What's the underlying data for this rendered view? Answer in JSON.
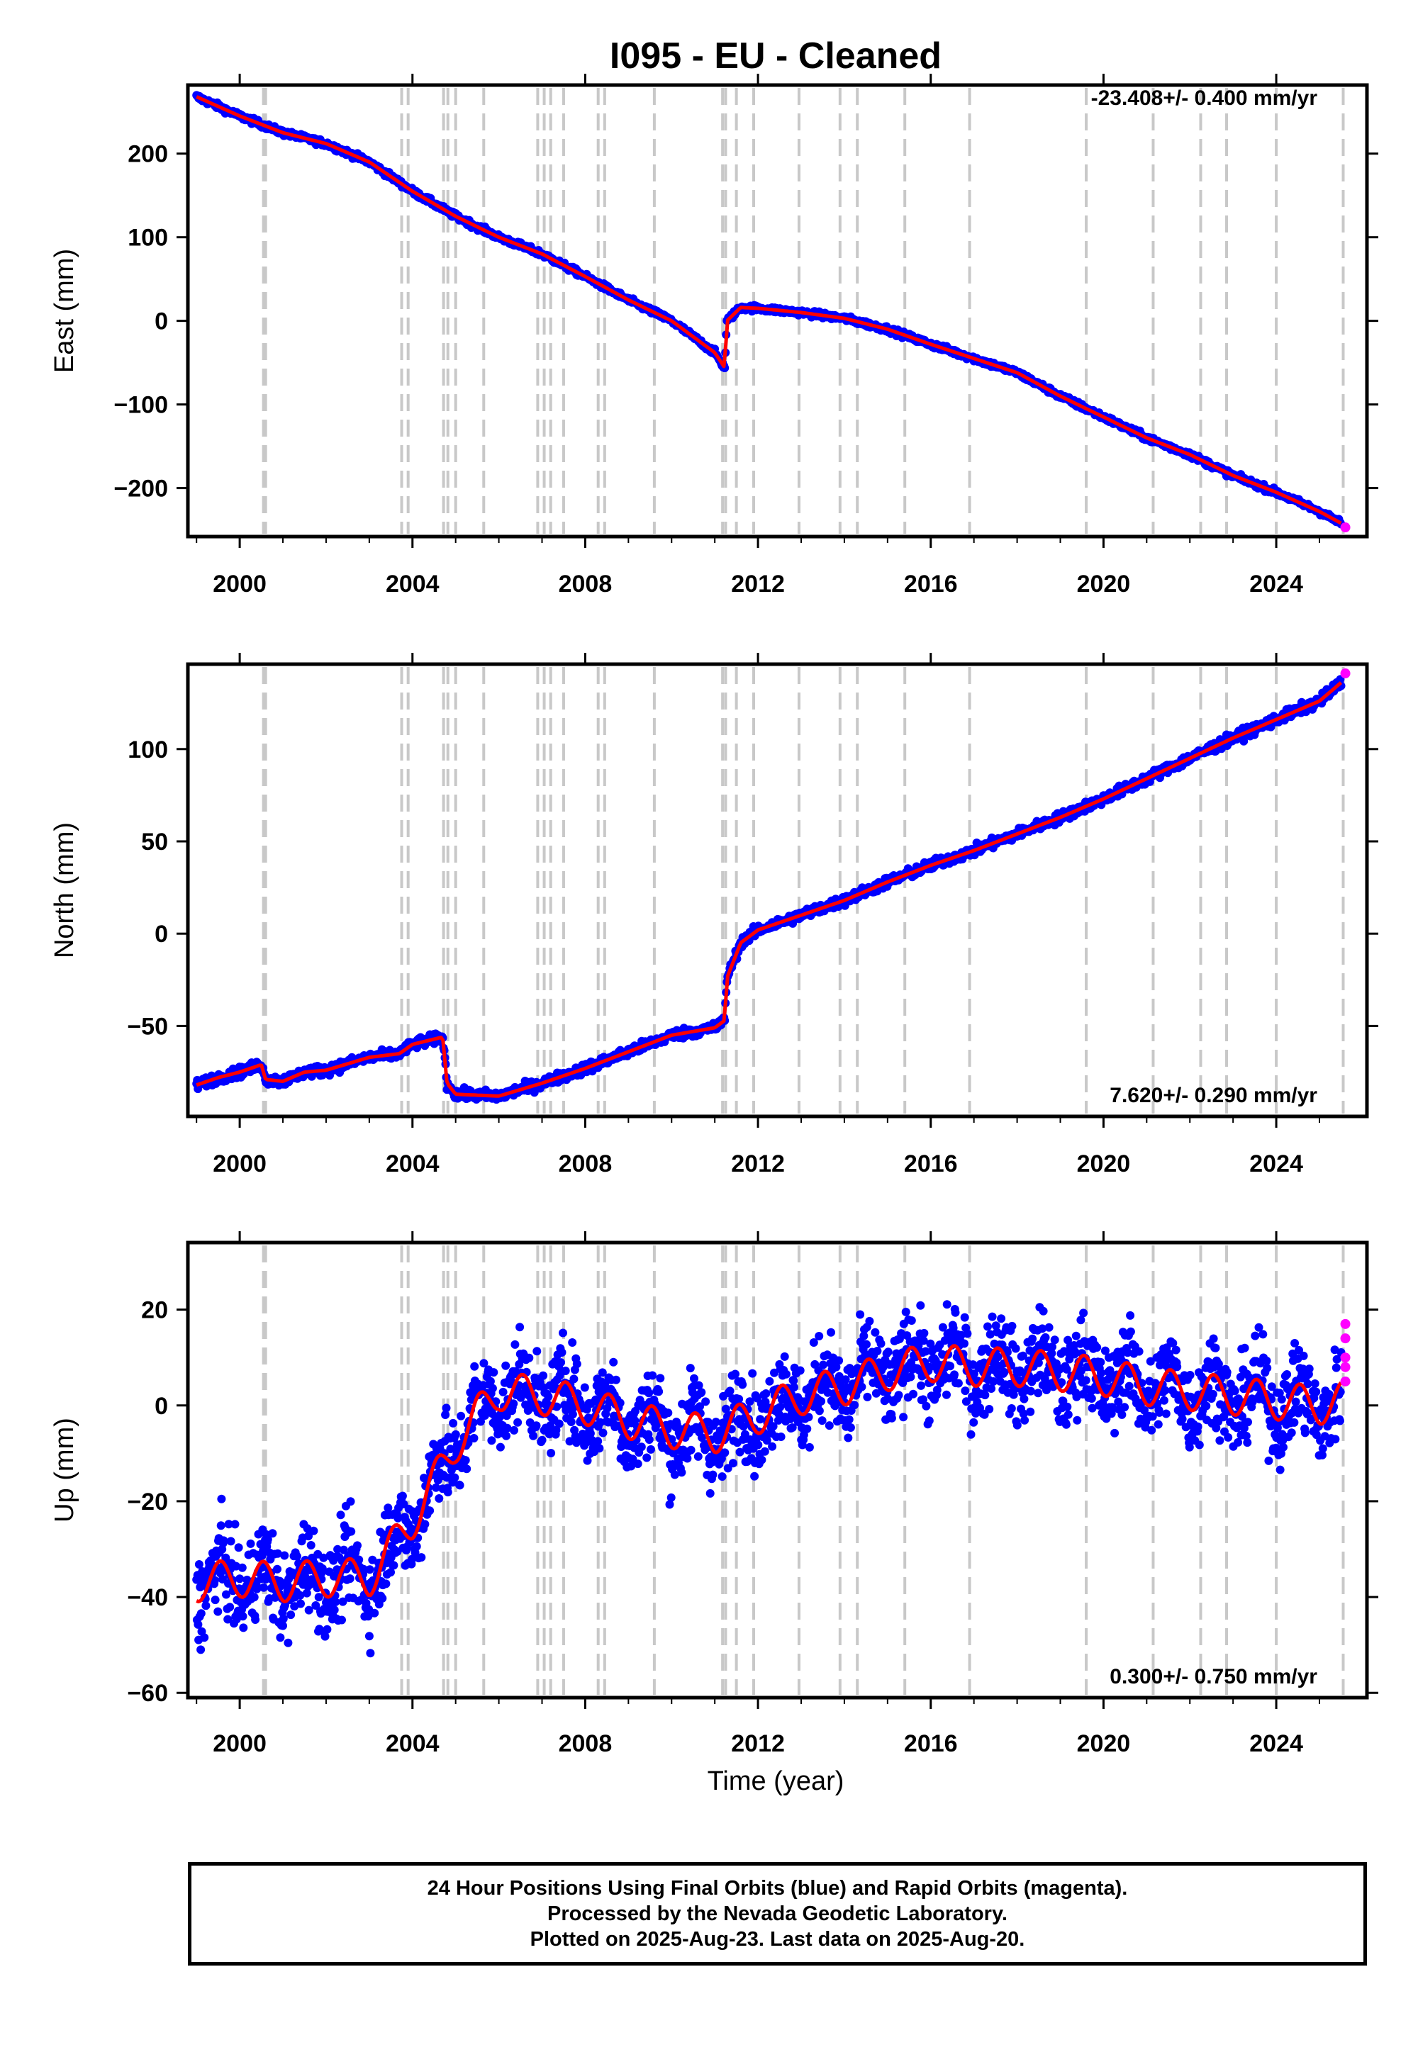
{
  "title": "I095  - EU - Cleaned",
  "colors": {
    "final_orbits": "#0000ff",
    "rapid_orbits": "#ff00ff",
    "model_fit": "#ff0000",
    "event_lines": "#c8c8c8"
  },
  "x_axis": {
    "label": "Time (year)",
    "range": [
      1998.8,
      2026.1
    ],
    "ticks": [
      2000,
      2004,
      2008,
      2012,
      2016,
      2020,
      2024
    ],
    "tick_labels": [
      "2000",
      "2004",
      "2008",
      "2012",
      "2016",
      "2020",
      "2024"
    ]
  },
  "event_lines_years": [
    2000.55,
    2000.6,
    2003.75,
    2003.9,
    2004.72,
    2004.82,
    2005.0,
    2005.65,
    2006.9,
    2007.05,
    2007.2,
    2007.5,
    2008.3,
    2008.45,
    2009.6,
    2011.18,
    2011.25,
    2011.5,
    2011.9,
    2012.95,
    2013.9,
    2014.3,
    2015.4,
    2016.9,
    2019.6,
    2021.15,
    2022.25,
    2022.85,
    2024.0,
    2025.55
  ],
  "chart_data": [
    {
      "id": "east",
      "type": "scatter",
      "ylabel": "East (mm)",
      "rate_label": "-23.408+/- 0.400 mm/yr",
      "rate_position": "top-right",
      "ylim": [
        -258,
        282
      ],
      "y_ticks": [
        -200,
        -100,
        0,
        100,
        200
      ],
      "y_tick_labels": [
        "−200",
        "−100",
        "0",
        "100",
        "200"
      ],
      "series": [
        {
          "name": "Final Orbits",
          "x": [
            1999.0,
            2000.0,
            2001.0,
            2002.0,
            2003.0,
            2004.0,
            2005.0,
            2006.0,
            2007.0,
            2008.0,
            2009.0,
            2010.0,
            2011.0,
            2011.23,
            2011.28,
            2011.6,
            2012.0,
            2013.0,
            2014.0,
            2015.0,
            2016.0,
            2017.0,
            2018.0,
            2019.0,
            2020.0,
            2021.0,
            2022.0,
            2023.0,
            2024.0,
            2025.0,
            2025.5
          ],
          "y": [
            268,
            245,
            225,
            212,
            190,
            155,
            125,
            100,
            80,
            53,
            25,
            0,
            -38,
            -56,
            0,
            16,
            15,
            10,
            3,
            -10,
            -28,
            -45,
            -62,
            -90,
            -115,
            -140,
            -160,
            -185,
            -205,
            -228,
            -242
          ]
        },
        {
          "name": "Rapid Orbits",
          "x": [
            2025.6
          ],
          "y": [
            -247
          ]
        }
      ]
    },
    {
      "id": "north",
      "type": "scatter",
      "ylabel": "North (mm)",
      "rate_label": "7.620+/- 0.290 mm/yr",
      "rate_position": "bottom-right",
      "ylim": [
        -99,
        146
      ],
      "y_ticks": [
        -50,
        0,
        50,
        100
      ],
      "y_tick_labels": [
        "−50",
        "0",
        "50",
        "100"
      ],
      "series": [
        {
          "name": "Final Orbits",
          "x": [
            1999.0,
            1999.5,
            2000.0,
            2000.5,
            2000.6,
            2001.0,
            2001.5,
            2002.0,
            2003.0,
            2003.7,
            2004.0,
            2004.7,
            2004.8,
            2005.0,
            2006.0,
            2007.0,
            2008.0,
            2009.0,
            2010.0,
            2011.0,
            2011.23,
            2011.28,
            2011.6,
            2012.0,
            2013.0,
            2014.0,
            2015.0,
            2016.0,
            2017.0,
            2018.0,
            2019.0,
            2020.0,
            2021.0,
            2022.0,
            2023.0,
            2024.0,
            2025.0,
            2025.5
          ],
          "y": [
            -82,
            -78,
            -75,
            -71,
            -79,
            -80,
            -75,
            -74,
            -67,
            -65,
            -60,
            -56,
            -81,
            -87,
            -88,
            -81,
            -73,
            -64,
            -55,
            -51,
            -47,
            -24,
            -5,
            2,
            10,
            18,
            28,
            37,
            45,
            54,
            63,
            73,
            84,
            95,
            106,
            116,
            126,
            136
          ]
        },
        {
          "name": "Rapid Orbits",
          "x": [
            2025.6
          ],
          "y": [
            141
          ]
        }
      ]
    },
    {
      "id": "up",
      "type": "scatter",
      "ylabel": "Up (mm)",
      "rate_label": "0.300+/- 0.750 mm/yr",
      "rate_position": "bottom-right",
      "ylim": [
        -61,
        34
      ],
      "y_ticks": [
        -60,
        -40,
        -20,
        0,
        20
      ],
      "y_tick_labels": [
        "−60",
        "−40",
        "−20",
        "0",
        "20"
      ],
      "series": [
        {
          "name": "Final Orbits",
          "x": [
            1999.0,
            2000.0,
            2001.0,
            2002.0,
            2003.0,
            2003.5,
            2004.0,
            2004.5,
            2005.0,
            2005.5,
            2006.0,
            2007.0,
            2008.0,
            2009.0,
            2010.0,
            2011.0,
            2012.0,
            2013.0,
            2014.0,
            2015.0,
            2016.0,
            2017.0,
            2018.0,
            2019.0,
            2020.0,
            2021.0,
            2022.0,
            2023.0,
            2024.0,
            2025.0,
            2025.5
          ],
          "y": [
            -37,
            -36,
            -37,
            -36,
            -36,
            -30,
            -24,
            -16,
            -8,
            -2,
            3,
            2,
            0,
            -3,
            -5,
            -6,
            -2,
            2,
            4,
            7,
            9,
            8,
            8,
            7,
            6,
            4,
            3,
            2,
            1,
            0,
            1
          ]
        },
        {
          "name": "Rapid Orbits",
          "x": [
            2025.6,
            2025.6,
            2025.6,
            2025.6,
            2025.6
          ],
          "y": [
            5,
            8,
            10,
            14,
            17
          ]
        }
      ]
    }
  ],
  "footer": {
    "line1": "24 Hour Positions Using Final Orbits (blue) and Rapid Orbits (magenta).",
    "line2": "Processed by the Nevada Geodetic Laboratory.",
    "line3": "Plotted on 2025-Aug-23. Last data on 2025-Aug-20."
  }
}
